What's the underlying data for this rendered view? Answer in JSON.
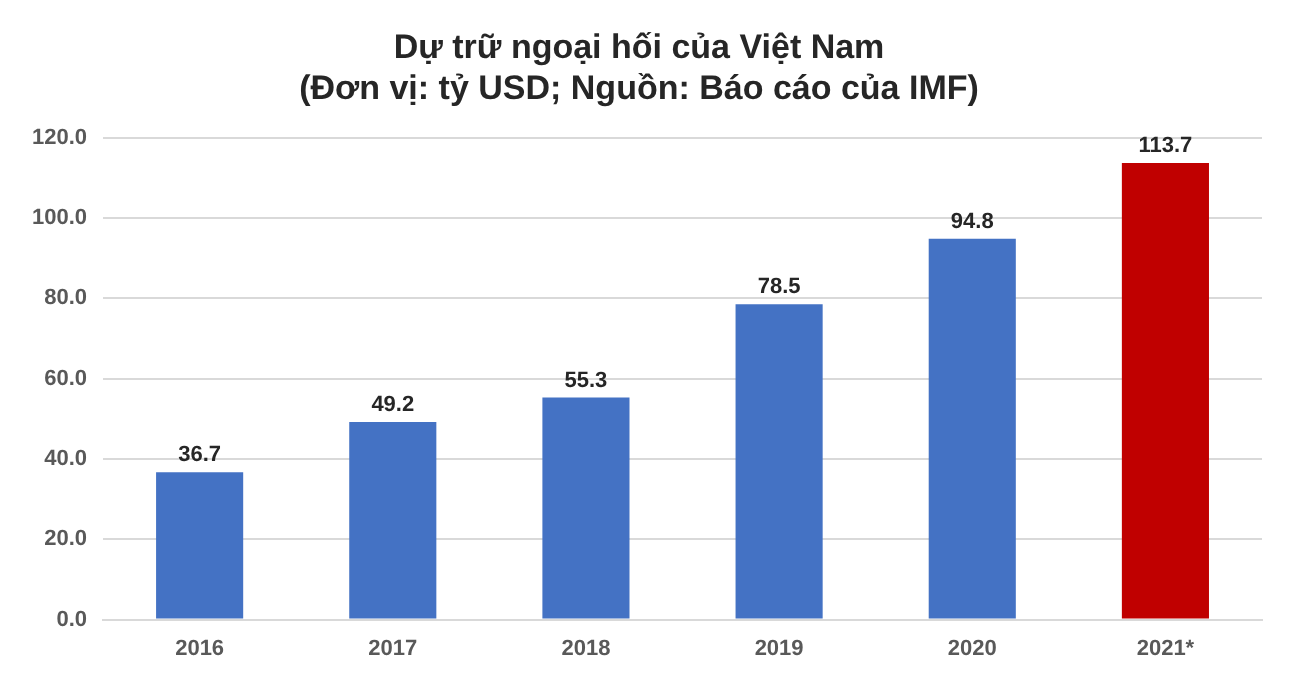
{
  "chart_data": {
    "type": "bar",
    "title": "Dự trữ ngoại hối của Việt Nam",
    "subtitle": "(Đơn vị: tỷ USD; Nguồn: Báo cáo của IMF)",
    "categories": [
      "2016",
      "2017",
      "2018",
      "2019",
      "2020",
      "2021*"
    ],
    "values": [
      36.7,
      49.2,
      55.3,
      78.5,
      94.8,
      113.7
    ],
    "colors": [
      "#4472c4",
      "#4472c4",
      "#4472c4",
      "#4472c4",
      "#4472c4",
      "#c00000"
    ],
    "ylim": [
      0,
      120
    ],
    "yticks": [
      {
        "value": 0,
        "label": "0.0"
      },
      {
        "value": 20,
        "label": "20.0"
      },
      {
        "value": 40,
        "label": "40.0"
      },
      {
        "value": 60,
        "label": "60.0"
      },
      {
        "value": 80,
        "label": "80.0"
      },
      {
        "value": 100,
        "label": "100.0"
      },
      {
        "value": 120,
        "label": "120.0"
      }
    ],
    "grid": "y",
    "data_labels": true,
    "legend": false
  }
}
